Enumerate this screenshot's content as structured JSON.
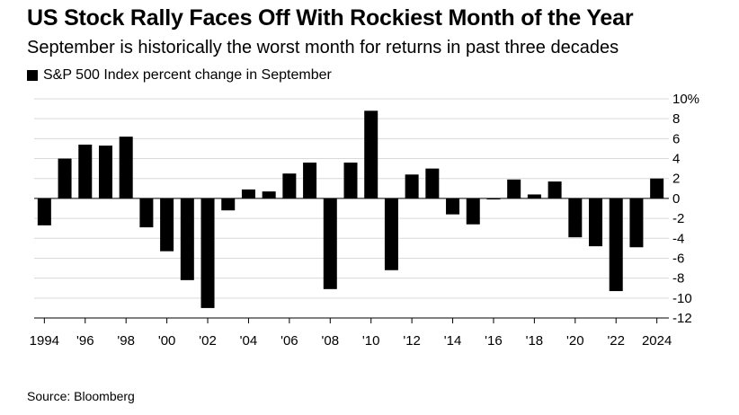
{
  "chart_data": {
    "type": "bar",
    "title": "US Stock Rally Faces Off With Rockiest Month of the Year",
    "subtitle": "September is historically the worst month for returns in past three decades",
    "source": "Source: Bloomberg",
    "series": [
      {
        "name": "S&P 500 Index percent change in September",
        "color": "#000000",
        "values": [
          -2.7,
          4.0,
          5.4,
          5.3,
          6.2,
          -2.9,
          -5.3,
          -8.2,
          -11.0,
          -1.2,
          0.9,
          0.7,
          2.5,
          3.6,
          -9.1,
          3.6,
          8.8,
          -7.2,
          2.4,
          3.0,
          -1.6,
          -2.6,
          -0.1,
          1.9,
          0.4,
          1.7,
          -3.9,
          -4.8,
          -9.3,
          -4.9,
          2.0
        ]
      }
    ],
    "categories": [
      "1994",
      "1995",
      "1996",
      "1997",
      "1998",
      "1999",
      "2000",
      "2001",
      "2002",
      "2003",
      "2004",
      "2005",
      "2006",
      "2007",
      "2008",
      "2009",
      "2010",
      "2011",
      "2012",
      "2013",
      "2014",
      "2015",
      "2016",
      "2017",
      "2018",
      "2019",
      "2020",
      "2021",
      "2022",
      "2023",
      "2024"
    ],
    "x_tick_labels": [
      {
        "index": 0,
        "label": "1994"
      },
      {
        "index": 2,
        "label": "'96"
      },
      {
        "index": 4,
        "label": "'98"
      },
      {
        "index": 6,
        "label": "'00"
      },
      {
        "index": 8,
        "label": "'02"
      },
      {
        "index": 10,
        "label": "'04"
      },
      {
        "index": 12,
        "label": "'06"
      },
      {
        "index": 14,
        "label": "'08"
      },
      {
        "index": 16,
        "label": "'10"
      },
      {
        "index": 18,
        "label": "'12"
      },
      {
        "index": 20,
        "label": "'14"
      },
      {
        "index": 22,
        "label": "'16"
      },
      {
        "index": 24,
        "label": "'18"
      },
      {
        "index": 26,
        "label": "'20"
      },
      {
        "index": 28,
        "label": "'22"
      },
      {
        "index": 30,
        "label": "2024"
      }
    ],
    "y_ticks": [
      10,
      8,
      6,
      4,
      2,
      0,
      -2,
      -4,
      -6,
      -8,
      -10,
      -12
    ],
    "y_tick_labels": [
      "10%",
      "8",
      "6",
      "4",
      "2",
      "0",
      "-2",
      "-4",
      "-6",
      "-8",
      "-10",
      "-12"
    ],
    "ylim": [
      -12,
      10
    ],
    "xlabel": "",
    "ylabel": "",
    "grid": true,
    "legend_position": "top-left",
    "y_axis_position": "right"
  }
}
